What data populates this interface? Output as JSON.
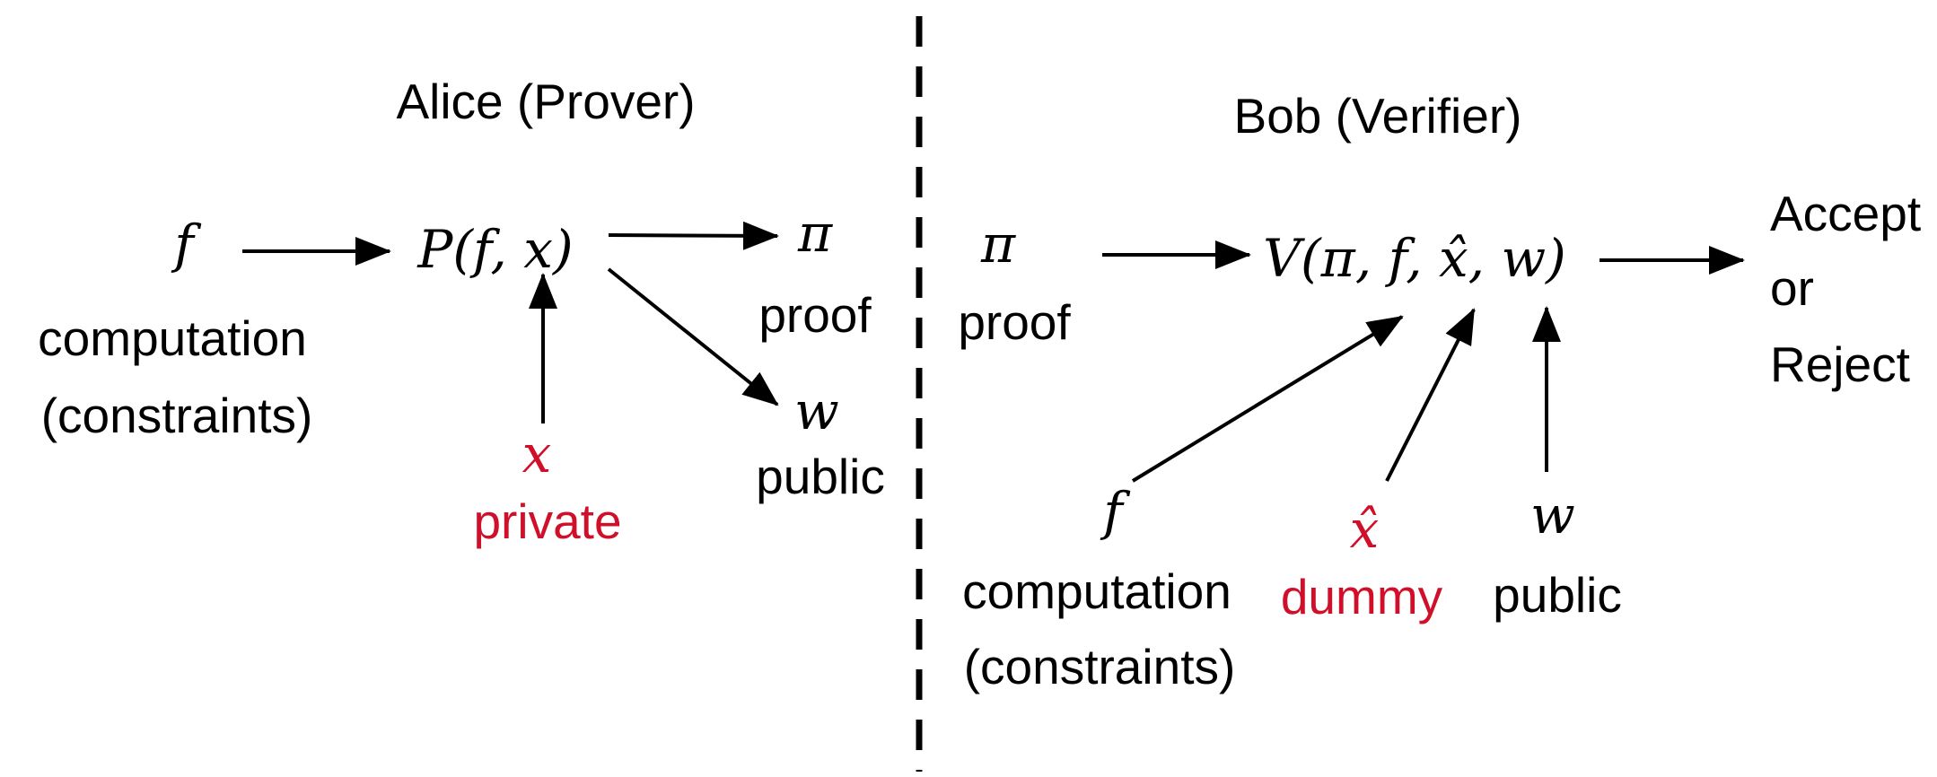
{
  "colors": {
    "text": "#000000",
    "highlight": "#d0102a",
    "background": "#ffffff"
  },
  "prover": {
    "title": "Alice (Prover)",
    "input_f": {
      "symbol": "f",
      "label_line1": "computation",
      "label_line2": "(constraints)"
    },
    "function": "P(f, x)",
    "input_x": {
      "symbol": "x",
      "label": "private"
    },
    "output_pi": {
      "symbol": "π",
      "label": "proof"
    },
    "output_w": {
      "symbol": "w",
      "label": "public"
    }
  },
  "verifier": {
    "title": "Bob (Verifier)",
    "input_pi": {
      "symbol": "π",
      "label": "proof"
    },
    "function": "V(π, f, x̂, w)",
    "input_f": {
      "symbol": "f",
      "label_line1": "computation",
      "label_line2": "(constraints)"
    },
    "input_xhat": {
      "symbol": "x̂",
      "label": "dummy"
    },
    "input_w": {
      "symbol": "w",
      "label": "public"
    },
    "result": {
      "line1": "Accept",
      "line2": "or",
      "line3": "Reject"
    }
  }
}
